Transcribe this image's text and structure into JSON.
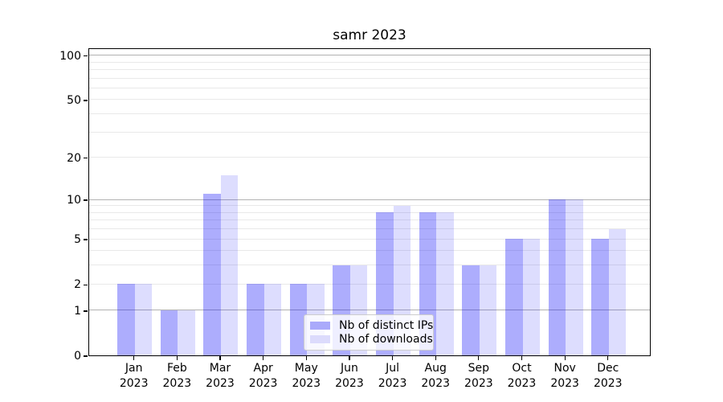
{
  "chart_data": {
    "type": "bar",
    "title": "samr 2023",
    "categories": [
      "Jan 2023",
      "Feb 2023",
      "Mar 2023",
      "Apr 2023",
      "May 2023",
      "Jun 2023",
      "Jul 2023",
      "Aug 2023",
      "Sep 2023",
      "Oct 2023",
      "Nov 2023",
      "Dec 2023"
    ],
    "series": [
      {
        "name": "Nb of distinct IPs",
        "color": "#aaaafb",
        "fill": "rgba(20,20,250,0.35)",
        "values": [
          2,
          1,
          11,
          2,
          2,
          3,
          8,
          8,
          3,
          5,
          10,
          5
        ]
      },
      {
        "name": "Nb of downloads",
        "color": "#dcdbfc",
        "fill": "rgba(20,20,250,0.145)",
        "values": [
          2,
          1,
          15,
          2,
          2,
          3,
          9,
          8,
          3,
          5,
          10,
          6
        ]
      }
    ],
    "y_scale": "log10(1+y)",
    "ylim": [
      0,
      112
    ],
    "y_tick_labels": [
      0,
      1,
      2,
      5,
      10,
      20,
      50,
      100
    ],
    "y_major_gridlines": [
      1,
      10,
      100
    ],
    "y_minor_gridlines": [
      2,
      3,
      4,
      5,
      6,
      7,
      8,
      9,
      20,
      30,
      40,
      50,
      60,
      70,
      80,
      90
    ],
    "grid": "on",
    "legend_position": "lower center",
    "gridline_major_color": "#b2b2b2",
    "gridline_minor_color": "#e9e9e9"
  }
}
